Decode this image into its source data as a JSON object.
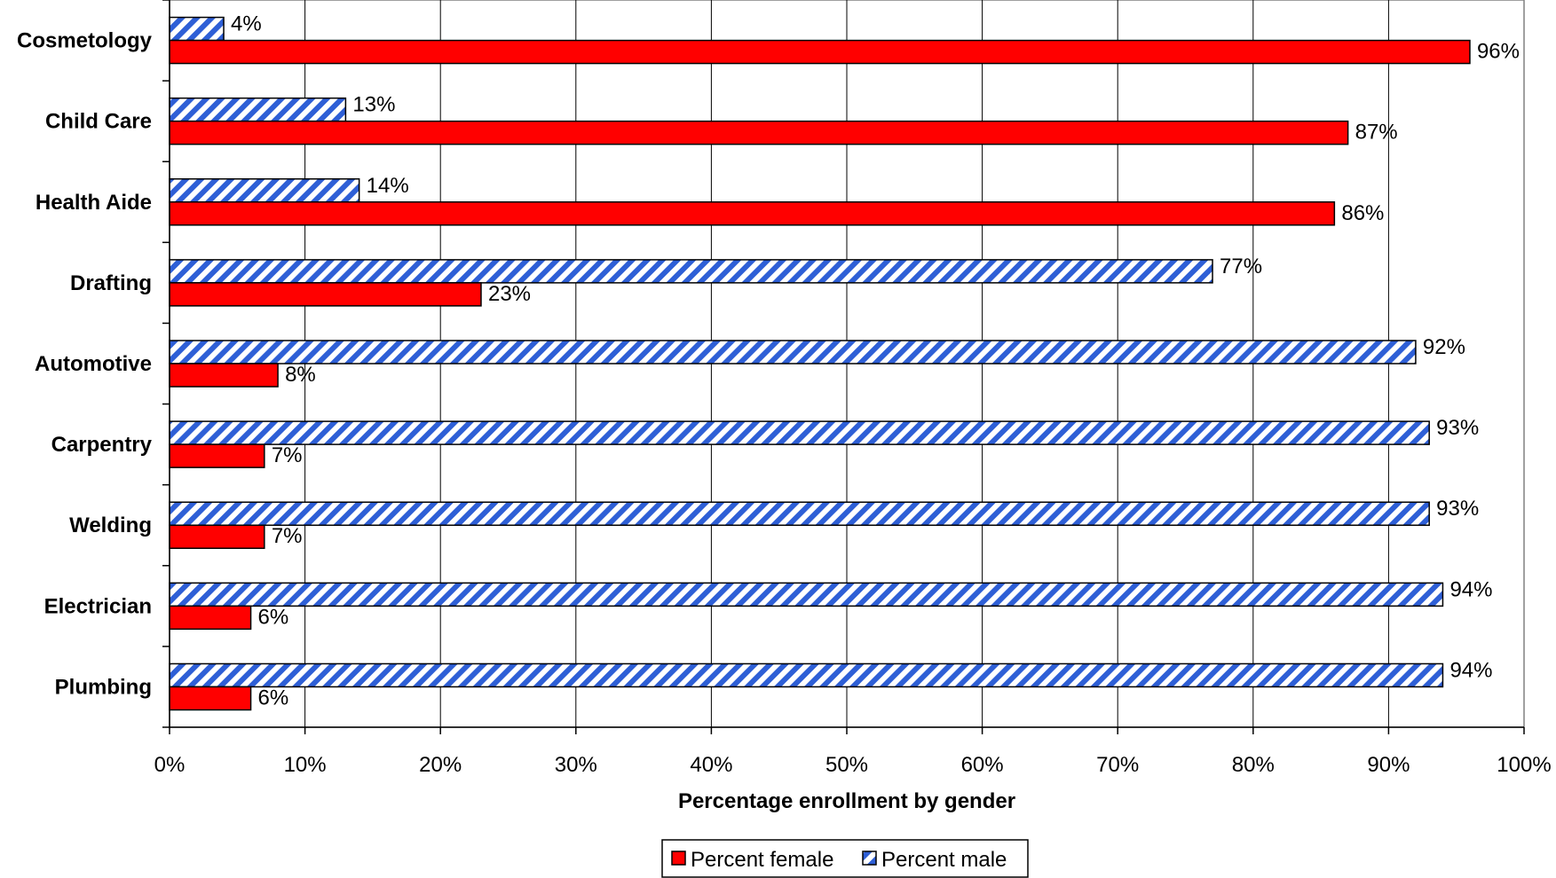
{
  "chart_data": {
    "type": "bar",
    "orientation": "horizontal",
    "categories": [
      "Cosmetology",
      "Child Care",
      "Health Aide",
      "Drafting",
      "Automotive",
      "Carpentry",
      "Welding",
      "Electrician",
      "Plumbing"
    ],
    "series": [
      {
        "name": "Percent male",
        "values": [
          4,
          13,
          14,
          77,
          92,
          93,
          93,
          94,
          94
        ],
        "labels": [
          "4%",
          "13%",
          "14%",
          "77%",
          "92%",
          "93%",
          "93%",
          "94%",
          "94%"
        ],
        "color": "#2e5fd6",
        "pattern": "diagonal-hatch"
      },
      {
        "name": "Percent female",
        "values": [
          96,
          87,
          86,
          23,
          8,
          7,
          7,
          6,
          6
        ],
        "labels": [
          "96%",
          "87%",
          "86%",
          "23%",
          "8%",
          "7%",
          "7%",
          "6%",
          "6%"
        ],
        "color": "#ff0000",
        "pattern": "solid"
      }
    ],
    "xlabel": "Percentage enrollment by gender",
    "xlim": [
      0,
      100
    ],
    "xticks": [
      "0%",
      "10%",
      "20%",
      "30%",
      "40%",
      "50%",
      "60%",
      "70%",
      "80%",
      "90%",
      "100%"
    ],
    "grid": "vertical",
    "legend": {
      "placement": "bottom",
      "entries": [
        {
          "name": "Percent female",
          "color": "#ff0000",
          "pattern": "solid"
        },
        {
          "name": "Percent male",
          "color": "#2e5fd6",
          "pattern": "diagonal-hatch"
        }
      ]
    }
  }
}
